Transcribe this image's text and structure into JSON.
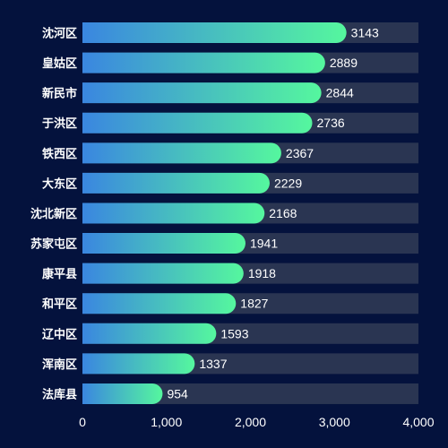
{
  "chart_data": {
    "type": "bar",
    "orientation": "horizontal",
    "categories": [
      "沈河区",
      "皇姑区",
      "新民市",
      "于洪区",
      "铁西区",
      "大东区",
      "沈北新区",
      "苏家屯区",
      "康平县",
      "和平区",
      "辽中区",
      "浑南区",
      "法库县"
    ],
    "values": [
      3143,
      2889,
      2844,
      2736,
      2367,
      2229,
      2168,
      1941,
      1918,
      1827,
      1593,
      1337,
      954
    ],
    "xlim": [
      0,
      4000
    ],
    "x_ticks": [
      "0",
      "1,000",
      "2,000",
      "3,000",
      "4,000"
    ],
    "grid": false,
    "data_labels": true,
    "colors": {
      "background": "#04123d",
      "track": "#2a3552",
      "bar_gradient_start": "#3a86e0",
      "bar_gradient_end": "#55f79e",
      "text": "#ffffff"
    }
  }
}
